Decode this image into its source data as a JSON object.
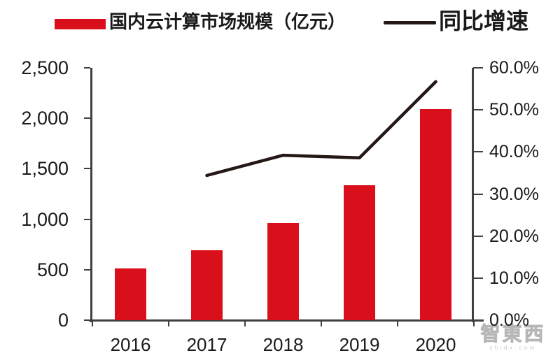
{
  "legend": {
    "items": [
      {
        "label": "国内云计算市场规模（亿元）",
        "marker": "bar"
      },
      {
        "label": "同比增速",
        "marker": "line"
      }
    ]
  },
  "chart_data": {
    "type": "bar",
    "title": "",
    "categories": [
      "2016",
      "2017",
      "2018",
      "2019",
      "2020"
    ],
    "series": [
      {
        "name": "国内云计算市场规模（亿元）",
        "type": "bar",
        "axis": "left",
        "values": [
          515,
          692,
          963,
          1334,
          2091
        ]
      },
      {
        "name": "同比增速",
        "type": "line",
        "axis": "right",
        "values": [
          null,
          34.4,
          39.2,
          38.6,
          56.7
        ]
      }
    ],
    "left_axis": {
      "min": 0,
      "max": 2500,
      "tick_labels": [
        "2,500",
        "2,000",
        "1,500",
        "1,000",
        "500",
        "0"
      ]
    },
    "right_axis": {
      "min": 0,
      "max": 60,
      "tick_labels": [
        "60.0%",
        "50.0%",
        "40.0%",
        "30.0%",
        "20.0%",
        "10.0%",
        "0.0%"
      ]
    },
    "grid": false,
    "legend_position": "top"
  },
  "watermark": {
    "logo": "智東西",
    "url": "zhidx.com"
  },
  "colors": {
    "bar": "#d9101b",
    "line": "#231815",
    "axis": "#404040",
    "text": "#1a1a1a"
  }
}
